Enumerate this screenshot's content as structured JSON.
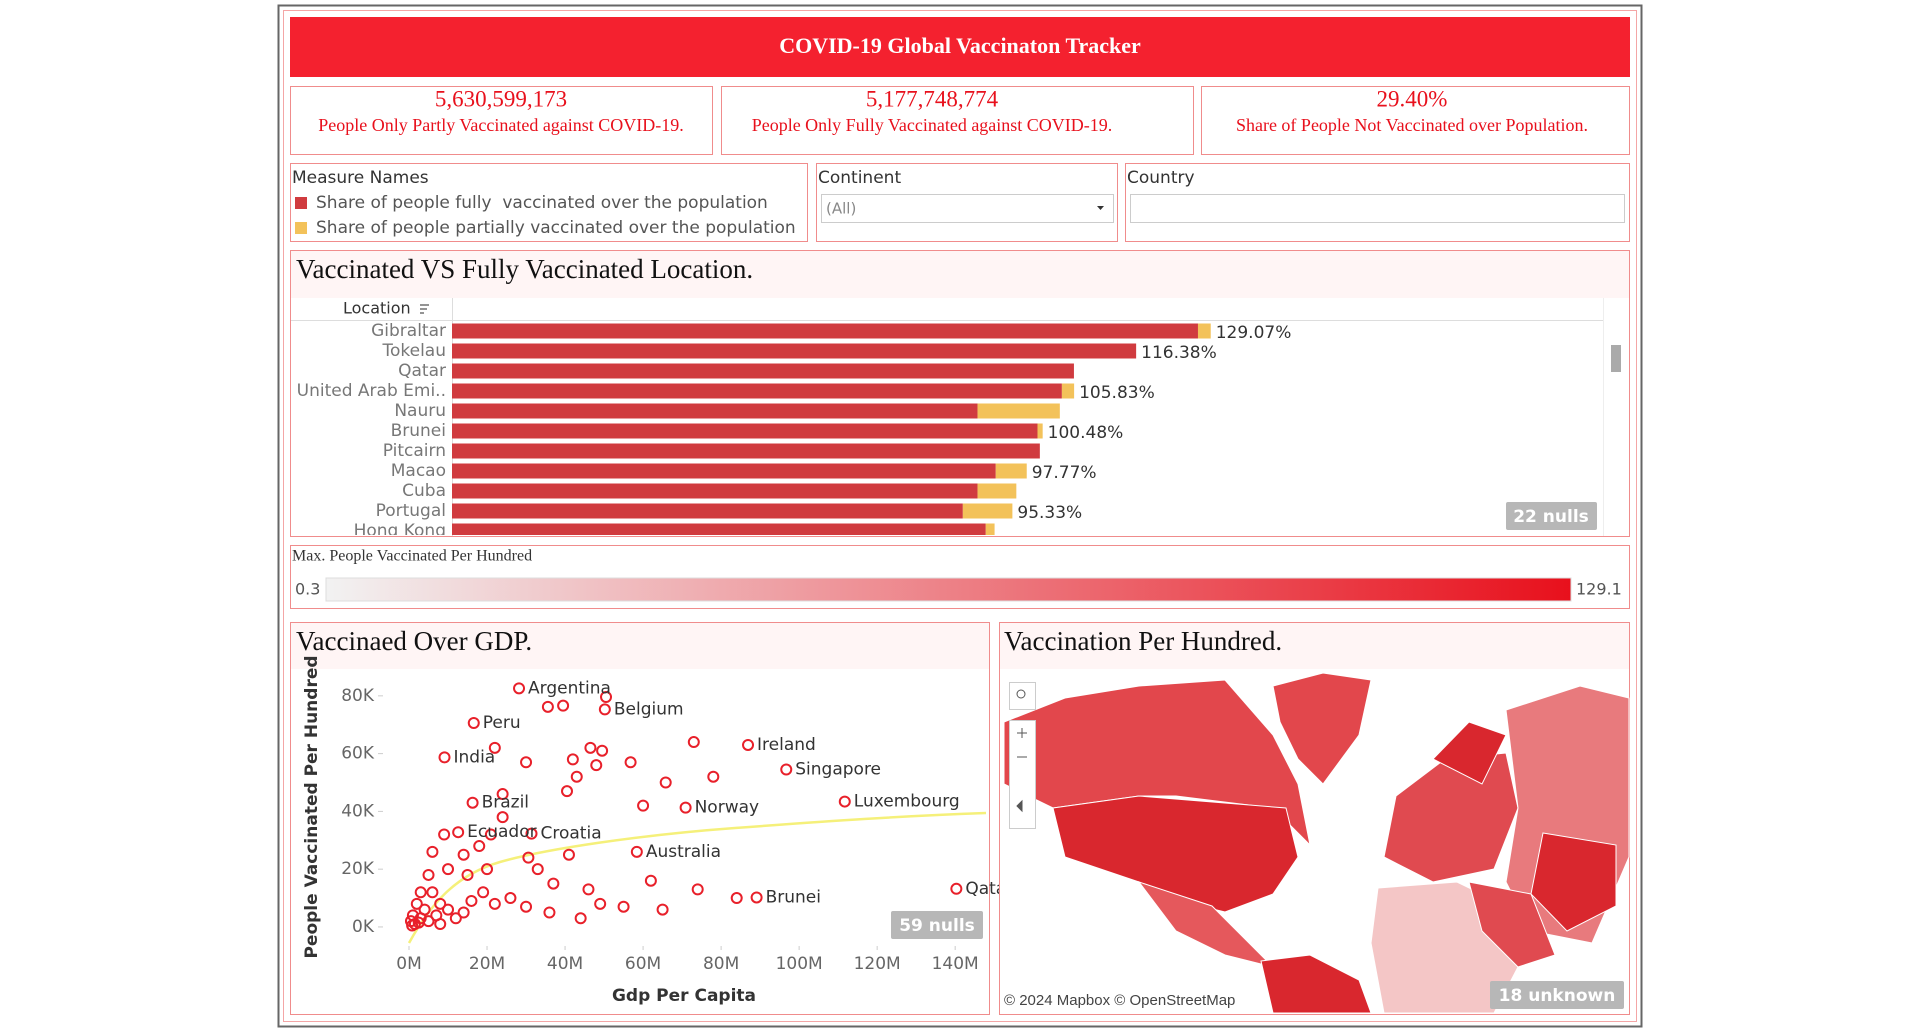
{
  "header": {
    "title": "COVID-19 Global Vaccinaton Tracker"
  },
  "kpis": [
    {
      "value": "5,630,599,173",
      "label": "People Only Partly Vaccinated against COVID-19."
    },
    {
      "value": "5,177,748,774",
      "label": "People Only Fully Vaccinated against COVID-19."
    },
    {
      "value": "29.40%",
      "label": "Share of People Not Vaccinated over Population."
    }
  ],
  "filters": [
    {
      "label": "Continent",
      "value": "(All)"
    },
    {
      "label": "Country"
    }
  ],
  "color_legend": {
    "title": "Max. People Vaccinated Per Hundred",
    "min": 0.3,
    "max": 129.1,
    "colors": [
      "#f2f2f2",
      "#e8101c"
    ]
  },
  "map": {
    "title": "Vaccination Per Hundred.",
    "attribution": "© 2024 Mapbox © OpenStreetMap",
    "unknown": "18 unknown"
  },
  "chart_data": [
    {
      "type": "bar",
      "orientation": "horizontal",
      "stacked": true,
      "title": "Vaccinated VS Fully Vaccinated Location.",
      "y_label": "Location",
      "legend_title": "Measure Names",
      "categories": [
        "Gibraltar",
        "Tokelau",
        "Qatar",
        "United Arab Emi..",
        "Nauru",
        "Brunei",
        "Pitcairn",
        "Macao",
        "Cuba",
        "Portugal",
        "Hong Kong"
      ],
      "series": [
        {
          "name": "Share of people fully  vaccinated over the population",
          "color": "#d03b3f",
          "values": [
            126.9,
            116.38,
            105.8,
            103.75,
            89.4,
            99.6,
            100.0,
            92.5,
            89.4,
            86.9,
            90.8
          ]
        },
        {
          "name": "Share of people partially vaccinated over the population",
          "color": "#f3c25a",
          "values": [
            2.17,
            0,
            0,
            2.08,
            14.0,
            0.88,
            0,
            5.27,
            6.6,
            8.43,
            1.5
          ]
        }
      ],
      "total_labels": [
        "129.07%",
        "116.38%",
        null,
        "105.83%",
        null,
        "100.48%",
        null,
        "97.77%",
        null,
        "95.33%",
        null
      ],
      "xlim": [
        0,
        195.8
      ],
      "nulls": "22 nulls"
    },
    {
      "type": "scatter",
      "title": "Vaccinaed Over GDP.",
      "x_label": "Gdp Per Capita",
      "y_label": "People Vaccinated Per Hundred",
      "xlim": [
        -4360000,
        147900000
      ],
      "ylim": [
        -5560,
        88600
      ],
      "xticks": [
        {
          "value": 0,
          "label": "0M"
        },
        {
          "value": 20000000,
          "label": "20M"
        },
        {
          "value": 40000000,
          "label": "40M"
        },
        {
          "value": 60000000,
          "label": "60M"
        },
        {
          "value": 80000000,
          "label": "80M"
        },
        {
          "value": 100000000,
          "label": "100M"
        },
        {
          "value": 120000000,
          "label": "120M"
        },
        {
          "value": 140000000,
          "label": "140M"
        }
      ],
      "yticks": [
        {
          "value": 0,
          "label": "0K"
        },
        {
          "value": 20000,
          "label": "20K"
        },
        {
          "value": 40000,
          "label": "40K"
        },
        {
          "value": 60000,
          "label": "60K"
        },
        {
          "value": 80000,
          "label": "80K"
        }
      ],
      "trend_color": "#f5f07a",
      "nulls": "59 nulls",
      "series": [
        {
          "color": "#e8202a",
          "labels": [
            "Argentina",
            "Peru",
            "Belgium",
            "Ireland",
            "India",
            "Singapore",
            "Brazil",
            "Ecuador",
            "Croatia",
            "Norway",
            "Luxembourg",
            "Australia",
            "Brunei",
            "Qatar",
            null,
            null,
            null,
            null,
            null,
            null,
            null,
            null,
            null,
            null,
            null,
            null,
            null,
            null,
            null,
            null,
            null,
            null,
            null,
            null,
            null,
            null,
            null,
            null,
            null,
            null,
            null,
            null,
            null,
            null,
            null,
            null,
            null,
            null,
            null,
            null,
            null,
            null,
            null,
            null,
            null,
            null,
            null,
            null,
            null,
            null,
            null,
            null,
            null,
            null,
            null,
            null,
            null,
            null,
            null,
            null,
            null,
            null,
            null,
            null,
            null,
            null
          ],
          "x": [
            28200000,
            16600000,
            50200000,
            86900000,
            9100000,
            96700000,
            16300000,
            12600000,
            31400000,
            70900000,
            111700000,
            58400000,
            89100000,
            140300000,
            35600000,
            39500000,
            50500000,
            46500000,
            42000000,
            49500000,
            48000000,
            43000000,
            56800000,
            60000000,
            65800000,
            73000000,
            78000000,
            40500000,
            30000000,
            22000000,
            24000000,
            24000000,
            21000000,
            18000000,
            14000000,
            9000000,
            6000000,
            30600000,
            33000000,
            41000000,
            37000000,
            46000000,
            49000000,
            55000000,
            65000000,
            74000000,
            84000000,
            62000000,
            20000000,
            15000000,
            10000000,
            5000000,
            3000000,
            2000000,
            1000000,
            500000,
            1500000,
            3000000,
            4000000,
            6000000,
            7000000,
            8000000,
            10000000,
            12000000,
            14000000,
            16000000,
            19000000,
            22000000,
            26000000,
            30000000,
            36000000,
            44000000,
            800000,
            2500000,
            5000000,
            8000000
          ],
          "values": [
            82600,
            70600,
            75300,
            63000,
            58700,
            54500,
            43000,
            32800,
            32300,
            41300,
            43400,
            26000,
            10200,
            13200,
            76200,
            76600,
            79600,
            62000,
            58000,
            61000,
            56000,
            52000,
            57000,
            42000,
            50000,
            64000,
            52000,
            47000,
            57000,
            62000,
            46000,
            38000,
            32000,
            28000,
            25000,
            32000,
            26000,
            24000,
            20000,
            25000,
            15000,
            13000,
            8000,
            7000,
            6000,
            13000,
            10000,
            16000,
            20000,
            18000,
            20000,
            18000,
            12000,
            8000,
            4000,
            2000,
            1000,
            3000,
            6000,
            12000,
            4000,
            8000,
            6000,
            3000,
            5000,
            9000,
            12000,
            8000,
            10000,
            7000,
            5000,
            3000,
            500,
            1500,
            2000,
            1000
          ]
        }
      ]
    }
  ]
}
